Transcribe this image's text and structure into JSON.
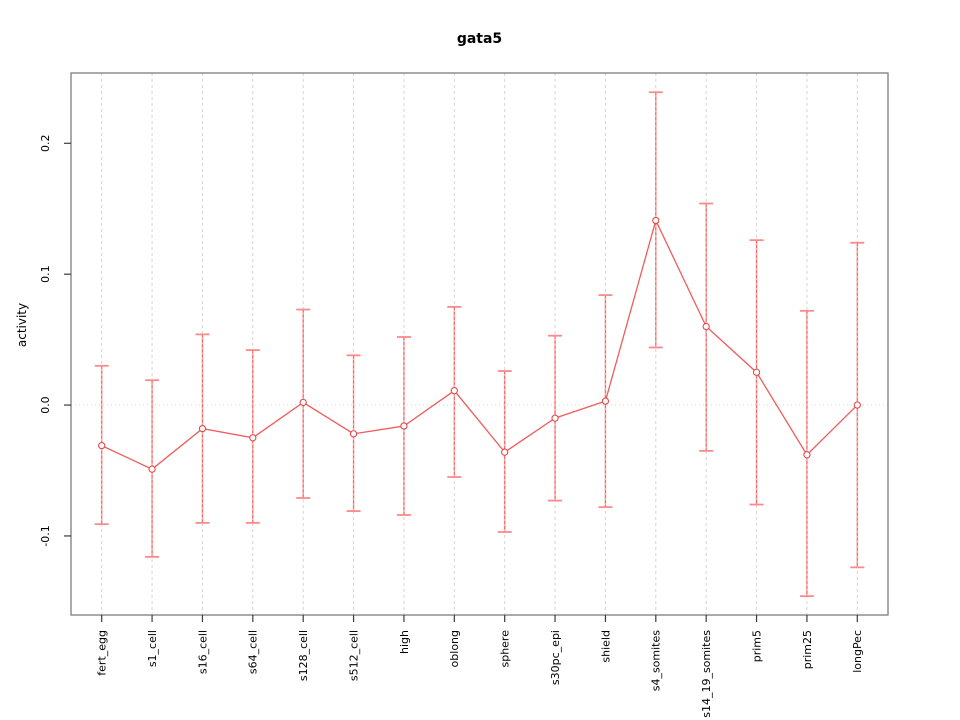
{
  "page": {
    "background": "#ffffff"
  },
  "chart_data": {
    "type": "line",
    "title": "gata5",
    "xlabel": "",
    "ylabel": "activity",
    "legend": "none",
    "marker": "open-circle",
    "categories": [
      "fert_egg",
      "s1_cell",
      "s16_cell",
      "s64_cell",
      "s128_cell",
      "s512_cell",
      "high",
      "oblong",
      "sphere",
      "s30pc_epi",
      "shield",
      "s4_somites",
      "s14_19_somites",
      "prim5",
      "prim25",
      "longPec"
    ],
    "series": [
      {
        "name": "activity",
        "values": [
          -0.031,
          -0.049,
          -0.018,
          -0.025,
          0.002,
          -0.022,
          -0.016,
          0.011,
          -0.036,
          -0.01,
          0.003,
          0.141,
          0.06,
          0.025,
          -0.038,
          0.0
        ],
        "error_upper": [
          0.03,
          0.019,
          0.054,
          0.042,
          0.073,
          0.038,
          0.052,
          0.075,
          0.026,
          0.053,
          0.084,
          0.239,
          0.154,
          0.126,
          0.072,
          0.124
        ],
        "error_lower": [
          -0.091,
          -0.116,
          -0.09,
          -0.09,
          -0.071,
          -0.081,
          -0.084,
          -0.055,
          -0.097,
          -0.073,
          -0.078,
          0.044,
          -0.035,
          -0.076,
          -0.146,
          -0.124
        ]
      }
    ],
    "ylim": [
      -0.1604,
      0.2537
    ],
    "yticks": [
      {
        "label": "0.2",
        "value": 0.2
      },
      {
        "label": "0.1",
        "value": 0.1
      },
      {
        "label": "0.0",
        "value": 0.0
      },
      {
        "label": "-0.1",
        "value": -0.1
      }
    ],
    "grid": {
      "vertical": "dashed-at-each-category",
      "horizontal": "dotted-at-zero"
    },
    "colors": {
      "series_line": "#ee5c5c",
      "error_bar_light": "#ffabab",
      "error_bar_dash": "#ee6666",
      "error_cap": "#fb8a8a",
      "marker_stroke": "#e14b4b",
      "grid": "#d4d4d4",
      "frame": "#7d7d7d",
      "tick": "#3c3c3c",
      "text": "#000000"
    }
  }
}
